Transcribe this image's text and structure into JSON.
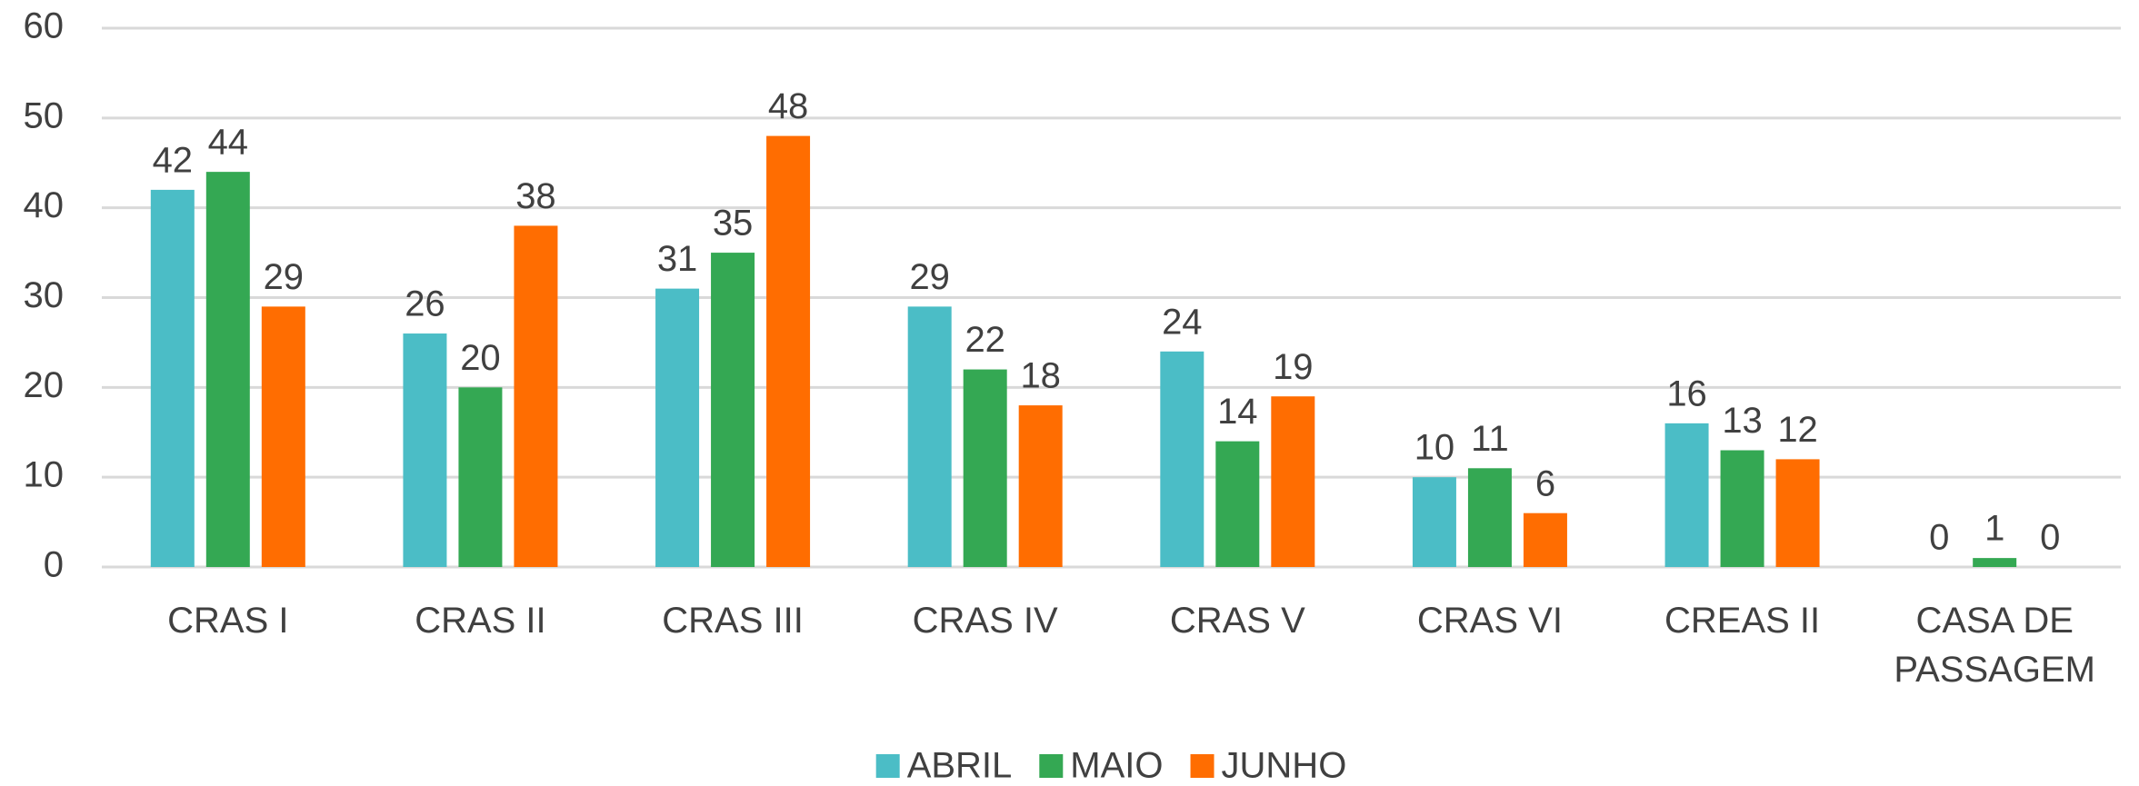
{
  "chart_data": {
    "type": "bar",
    "categories": [
      "CRAS I",
      "CRAS II",
      "CRAS III",
      "CRAS IV",
      "CRAS V",
      "CRAS VI",
      "CREAS II",
      "CASA DE PASSAGEM"
    ],
    "series": [
      {
        "name": "ABRIL",
        "color": "#4bbdc6",
        "values": [
          42,
          26,
          31,
          29,
          24,
          10,
          16,
          0
        ]
      },
      {
        "name": "MAIO",
        "color": "#34a853",
        "values": [
          44,
          20,
          35,
          22,
          14,
          11,
          13,
          1
        ]
      },
      {
        "name": "JUNHO",
        "color": "#ff6d01",
        "values": [
          29,
          38,
          48,
          18,
          19,
          6,
          12,
          0
        ]
      }
    ],
    "ylim": [
      0,
      60
    ],
    "yticks": [
      0,
      10,
      20,
      30,
      40,
      50,
      60
    ],
    "grid": true,
    "legend": "bottom"
  }
}
